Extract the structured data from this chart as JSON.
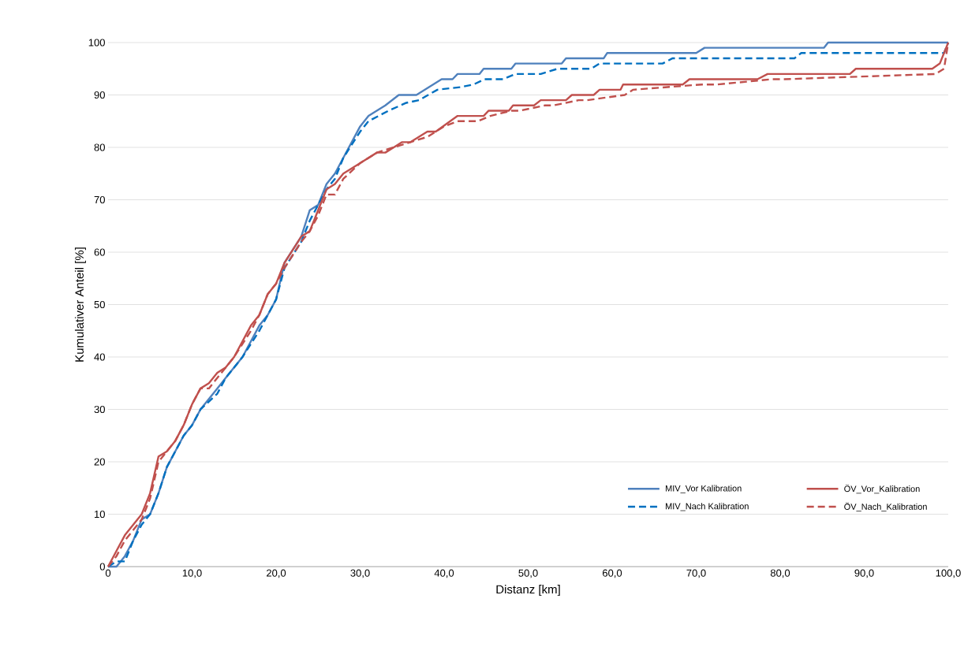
{
  "chart_data": {
    "type": "line",
    "xlabel": "Distanz [km]",
    "ylabel": "Kumulativer Anteil [%]",
    "xlim": [
      0,
      100
    ],
    "ylim": [
      0,
      100
    ],
    "xticks": [
      0,
      {
        "value": 10,
        "label": "10,0"
      },
      {
        "value": 20,
        "label": "20,0"
      },
      {
        "value": 30,
        "label": "30,0"
      },
      {
        "value": 40,
        "label": "40,0"
      },
      {
        "value": 50,
        "label": "50,0"
      },
      {
        "value": 60,
        "label": "60,0"
      },
      {
        "value": 70,
        "label": "70,0"
      },
      {
        "value": 80,
        "label": "80,0"
      },
      {
        "value": 90,
        "label": "90,0"
      },
      {
        "value": 100,
        "label": "100,0"
      }
    ],
    "yticks": [
      0,
      10,
      20,
      30,
      40,
      50,
      60,
      70,
      80,
      90,
      100
    ],
    "grid": "y",
    "legend": "bottom right",
    "marker": "none",
    "series": [
      {
        "name": "MIV_Vor Kalibration",
        "color": "#4f81bd",
        "line_style": "solid",
        "x": [
          0,
          1,
          2,
          3,
          4,
          5,
          6,
          7,
          9,
          10,
          11,
          13,
          14,
          16,
          18,
          19,
          20,
          21,
          23,
          24,
          25,
          26,
          27,
          28,
          30,
          31,
          33,
          34.6,
          36.7,
          39.7,
          41,
          41.6,
          44.2,
          44.7,
          48,
          48.5,
          54,
          54.5,
          59,
          59.4,
          70,
          71,
          85.2,
          85.7,
          100
        ],
        "values": [
          0,
          0,
          2,
          5,
          9,
          10,
          14,
          19,
          25,
          27,
          30,
          34,
          36,
          40,
          46,
          48,
          51,
          58,
          63,
          68,
          69,
          73,
          75,
          78,
          84,
          86,
          88,
          90,
          90,
          93,
          93,
          94,
          94,
          95,
          95,
          96,
          96,
          97,
          97,
          98,
          98,
          99,
          99,
          100,
          100
        ]
      },
      {
        "name": "MIV_Nach Kalibration",
        "color": "#0070c0",
        "line_style": "dashed",
        "x": [
          0,
          1,
          2,
          3,
          4,
          5,
          6,
          7,
          9,
          10,
          11,
          13,
          14,
          16,
          18,
          19,
          20,
          21,
          23,
          24,
          25,
          26,
          27,
          28,
          30,
          31,
          33.4,
          35.5,
          37,
          39.2,
          42,
          43.5,
          44.8,
          47,
          48.5,
          51.5,
          53.5,
          57.5,
          58.5,
          66,
          67.2,
          81.7,
          82.5,
          99.5,
          100
        ],
        "values": [
          0,
          1,
          1,
          5,
          8,
          10,
          14,
          19,
          25,
          27,
          30,
          33,
          36,
          40,
          45,
          48,
          51,
          57,
          62,
          66,
          69,
          72,
          74,
          78,
          83,
          85,
          87,
          88.5,
          89,
          91,
          91.5,
          92,
          93,
          93,
          94,
          94,
          95,
          95,
          96,
          96,
          97,
          97,
          98,
          98,
          100
        ]
      },
      {
        "name": "ÖV_Vor_Kalibration",
        "color": "#c0504d",
        "line_style": "solid",
        "x": [
          0,
          1,
          2,
          4,
          5,
          6,
          7,
          8,
          9,
          10,
          11,
          12,
          13,
          14,
          15,
          17,
          18,
          19,
          20,
          21,
          23,
          24,
          25,
          26,
          27,
          28,
          30,
          32,
          33,
          34,
          35,
          36,
          38,
          39,
          41.6,
          44.7,
          45.3,
          47.7,
          48.2,
          50.7,
          51.5,
          54.5,
          55.2,
          57.8,
          58.5,
          61,
          61.3,
          68.4,
          69.2,
          77.3,
          78.5,
          88.3,
          89,
          98.1,
          99,
          100
        ],
        "values": [
          0,
          3,
          6,
          10,
          14,
          21,
          22,
          24,
          27,
          31,
          34,
          35,
          37,
          38,
          40,
          46,
          48,
          52,
          54,
          58,
          63,
          64,
          68,
          72,
          73,
          75,
          77,
          79,
          79,
          80,
          81,
          81,
          83,
          83,
          86,
          86,
          87,
          87,
          88,
          88,
          89,
          89,
          90,
          90,
          91,
          91,
          92,
          92,
          93,
          93,
          94,
          94,
          95,
          95,
          96,
          100
        ]
      },
      {
        "name": "ÖV_Nach_Kalibration",
        "color": "#c0504d",
        "line_style": "dashed",
        "x": [
          0,
          1,
          2,
          4,
          5,
          6,
          7,
          8,
          9,
          10,
          11,
          12,
          13,
          14,
          15,
          17,
          18,
          19,
          20,
          21,
          23,
          24,
          25,
          26,
          27,
          28,
          30,
          32,
          34,
          36,
          38,
          40,
          41.6,
          44,
          45.5,
          48,
          49,
          52,
          53,
          56,
          57,
          61.5,
          62.5,
          70.7,
          72.5,
          79,
          80.5,
          98.5,
          99.5,
          100
        ],
        "values": [
          0,
          2,
          5,
          9,
          13,
          20,
          22,
          24,
          27,
          31,
          34,
          34,
          36,
          38,
          40,
          45,
          48,
          52,
          54,
          57,
          62,
          64,
          67,
          71,
          71,
          74,
          77,
          79,
          80,
          81,
          82,
          84,
          85,
          85,
          86,
          87,
          87,
          88,
          88,
          89,
          89,
          90,
          91,
          92,
          92,
          93,
          93,
          94,
          95,
          100
        ]
      }
    ]
  }
}
